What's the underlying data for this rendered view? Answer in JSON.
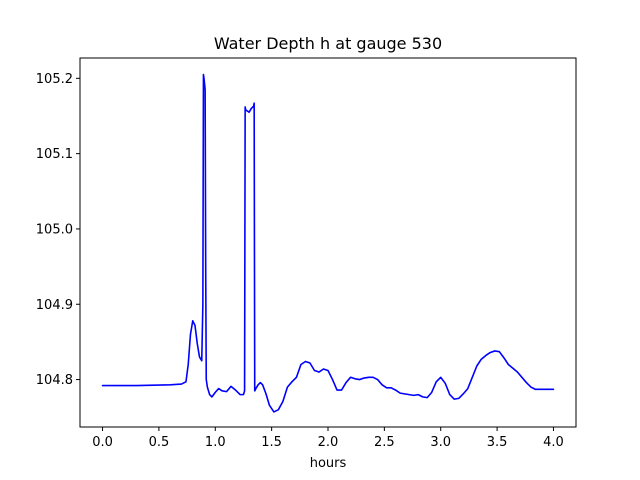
{
  "chart_data": {
    "type": "line",
    "title": "Water Depth h at gauge 530",
    "xlabel": "hours",
    "ylabel": "",
    "xlim": [
      -0.2,
      4.2
    ],
    "ylim": [
      104.737,
      105.227
    ],
    "xticks": [
      0.0,
      0.5,
      1.0,
      1.5,
      2.0,
      2.5,
      3.0,
      3.5,
      4.0
    ],
    "xtick_labels": [
      "0.0",
      "0.5",
      "1.0",
      "1.5",
      "2.0",
      "2.5",
      "3.0",
      "3.5",
      "4.0"
    ],
    "yticks": [
      104.8,
      104.9,
      105.0,
      105.1,
      105.2
    ],
    "ytick_labels": [
      "104.8",
      "104.9",
      "105.0",
      "105.1",
      "105.2"
    ],
    "grid": false,
    "series": [
      {
        "color": "#0000ff",
        "x": [
          0.0,
          0.3,
          0.6,
          0.7,
          0.74,
          0.76,
          0.78,
          0.8,
          0.82,
          0.84,
          0.86,
          0.88,
          0.89,
          0.895,
          0.9,
          0.91,
          0.915,
          0.92,
          0.93,
          0.95,
          0.97,
          1.0,
          1.03,
          1.06,
          1.1,
          1.14,
          1.18,
          1.22,
          1.25,
          1.26,
          1.265,
          1.27,
          1.28,
          1.3,
          1.32,
          1.34,
          1.345,
          1.35,
          1.36,
          1.38,
          1.4,
          1.42,
          1.45,
          1.48,
          1.52,
          1.56,
          1.6,
          1.64,
          1.68,
          1.72,
          1.76,
          1.8,
          1.84,
          1.88,
          1.92,
          1.96,
          2.0,
          2.04,
          2.08,
          2.12,
          2.16,
          2.2,
          2.24,
          2.28,
          2.32,
          2.36,
          2.4,
          2.44,
          2.48,
          2.52,
          2.56,
          2.6,
          2.64,
          2.68,
          2.72,
          2.76,
          2.8,
          2.84,
          2.88,
          2.92,
          2.96,
          3.0,
          3.04,
          3.08,
          3.12,
          3.16,
          3.2,
          3.24,
          3.28,
          3.32,
          3.36,
          3.4,
          3.44,
          3.48,
          3.52,
          3.56,
          3.6,
          3.64,
          3.68,
          3.72,
          3.76,
          3.8,
          3.84,
          3.88,
          3.92,
          3.96,
          4.0
        ],
        "y": [
          104.792,
          104.792,
          104.793,
          104.794,
          104.797,
          104.82,
          104.86,
          104.878,
          104.872,
          104.848,
          104.83,
          104.825,
          104.9,
          105.205,
          105.2,
          105.185,
          104.95,
          104.8,
          104.79,
          104.78,
          104.777,
          104.783,
          104.788,
          104.785,
          104.784,
          104.791,
          104.786,
          104.78,
          104.78,
          104.785,
          105.162,
          105.158,
          105.157,
          105.155,
          105.16,
          105.163,
          105.167,
          104.785,
          104.788,
          104.793,
          104.796,
          104.793,
          104.781,
          104.766,
          104.757,
          104.76,
          104.771,
          104.79,
          104.797,
          104.803,
          104.82,
          104.824,
          104.822,
          104.812,
          104.81,
          104.814,
          104.812,
          104.8,
          104.786,
          104.786,
          104.796,
          104.803,
          104.801,
          104.8,
          104.802,
          104.803,
          104.803,
          104.8,
          104.793,
          104.789,
          104.789,
          104.786,
          104.782,
          104.781,
          104.78,
          104.779,
          104.78,
          104.777,
          104.776,
          104.783,
          104.797,
          104.803,
          104.795,
          104.78,
          104.774,
          104.775,
          104.781,
          104.788,
          104.803,
          104.818,
          104.827,
          104.832,
          104.836,
          104.838,
          104.837,
          104.829,
          104.82,
          104.815,
          104.81,
          104.803,
          104.796,
          104.79,
          104.787,
          104.787,
          104.787,
          104.787,
          104.787
        ]
      }
    ]
  }
}
